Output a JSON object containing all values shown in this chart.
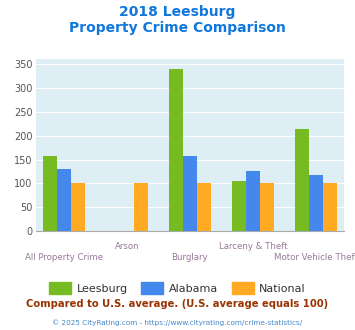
{
  "title_line1": "2018 Leesburg",
  "title_line2": "Property Crime Comparison",
  "categories": [
    "All Property Crime",
    "Arson",
    "Burglary",
    "Larceny & Theft",
    "Motor Vehicle Theft"
  ],
  "leesburg": [
    157,
    0,
    340,
    105,
    215
  ],
  "alabama": [
    130,
    0,
    158,
    125,
    117
  ],
  "national": [
    100,
    100,
    100,
    100,
    100
  ],
  "leesburg_color": "#77bb22",
  "alabama_color": "#4488ee",
  "national_color": "#ffaa22",
  "bg_color": "#ddeef4",
  "title_color": "#1177dd",
  "xlabel_color": "#997799",
  "footer_text": "Compared to U.S. average. (U.S. average equals 100)",
  "footer_color": "#993300",
  "credit_text": "© 2025 CityRating.com - https://www.cityrating.com/crime-statistics/",
  "credit_color": "#4488cc",
  "ylim": [
    0,
    360
  ],
  "yticks": [
    0,
    50,
    100,
    150,
    200,
    250,
    300,
    350
  ],
  "bar_width": 0.22,
  "group_positions": [
    0,
    1,
    2,
    3,
    4
  ]
}
